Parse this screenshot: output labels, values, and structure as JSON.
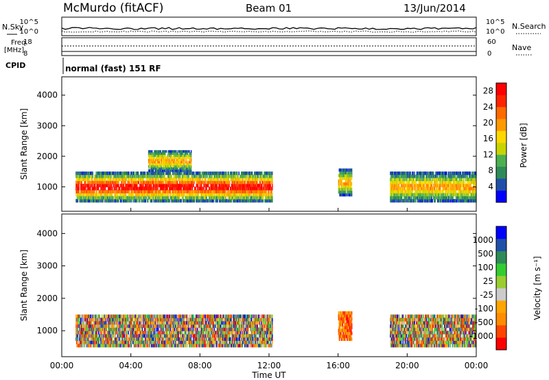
{
  "header": {
    "station": "McMurdo (fitACF)",
    "beam": "Beam 01",
    "date": "13/Jun/2014"
  },
  "panels": {
    "nsky_label": "N.Sky",
    "nsearch_label": "N.Search",
    "noise_ticks_left": [
      "10^5",
      "10^0"
    ],
    "noise_ticks_right": [
      "10^5",
      "10^0"
    ],
    "freq_label_1": "Freq.",
    "freq_label_2": "[MHz]",
    "freq_ticks": [
      "18",
      "8"
    ],
    "nave_label": "Nave",
    "nave_ticks": [
      "60",
      "0"
    ],
    "cpid_label": "CPID",
    "mode_text": "normal (fast) 151 RF"
  },
  "colors": {
    "power": [
      "#0000ff",
      "#1f4fa8",
      "#2e8b57",
      "#4caf50",
      "#c8d400",
      "#ffd700",
      "#ff9900",
      "#ff6a00",
      "#ff2400",
      "#ff0000"
    ],
    "velocity": [
      "#ff0000",
      "#ff4500",
      "#ff8c00",
      "#ffa500",
      "#cccccc",
      "#9acd32",
      "#32cd32",
      "#2e8b57",
      "#1f4fa8",
      "#0000ff"
    ]
  },
  "chart_data": [
    {
      "type": "heatmap",
      "name": "power",
      "ylabel": "Slant Range [km]",
      "yticks": [
        "1000",
        "2000",
        "3000",
        "4000"
      ],
      "ylim": [
        200,
        4600
      ],
      "xlabel": "Time UT",
      "xticks": [
        "00:00",
        "04:00",
        "08:00",
        "12:00",
        "16:00",
        "20:00",
        "00:00"
      ],
      "xlim": [
        0,
        24
      ],
      "colorbar_label": "Power [dB]",
      "colorbar_ticks": [
        "4",
        "8",
        "12",
        "16",
        "20",
        "24",
        "28"
      ],
      "clim": [
        0,
        30
      ],
      "echo_regions": [
        {
          "t0": 0.8,
          "t1": 12.2,
          "r0": 500,
          "r1": 1500,
          "level": "high"
        },
        {
          "t0": 5.0,
          "t1": 7.5,
          "r0": 1500,
          "r1": 2200,
          "level": "mid"
        },
        {
          "t0": 16.0,
          "t1": 16.8,
          "r0": 700,
          "r1": 1600,
          "level": "mid"
        },
        {
          "t0": 19.0,
          "t1": 24.0,
          "r0": 500,
          "r1": 1500,
          "level": "mid"
        }
      ]
    },
    {
      "type": "heatmap",
      "name": "velocity",
      "ylabel": "Slant Range [km]",
      "yticks": [
        "1000",
        "2000",
        "3000",
        "4000"
      ],
      "ylim": [
        200,
        4600
      ],
      "xlabel": "Time UT",
      "xticks": [
        "00:00",
        "04:00",
        "08:00",
        "12:00",
        "16:00",
        "20:00",
        "00:00"
      ],
      "xlim": [
        0,
        24
      ],
      "colorbar_label": "Velocity [m s⁻¹]",
      "colorbar_ticks": [
        "1000",
        "500",
        "100",
        "25",
        "-25",
        "-100",
        "-500",
        "-1000"
      ],
      "clim": [
        -1000,
        1000
      ],
      "echo_regions": [
        {
          "t0": 0.8,
          "t1": 12.2,
          "r0": 500,
          "r1": 1500,
          "level": "mixed"
        },
        {
          "t0": 16.0,
          "t1": 16.8,
          "r0": 700,
          "r1": 1600,
          "level": "negative"
        },
        {
          "t0": 19.0,
          "t1": 24.0,
          "r0": 500,
          "r1": 1500,
          "level": "mixed"
        }
      ]
    }
  ]
}
